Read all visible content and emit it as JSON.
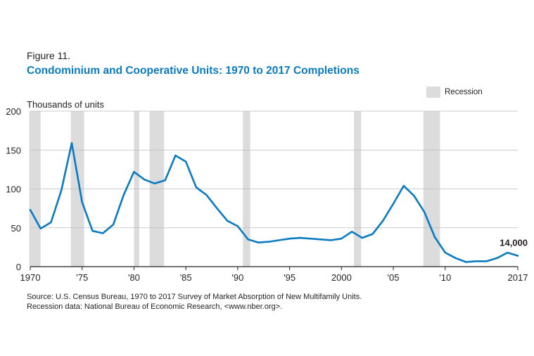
{
  "figure_label": "Figure 11.",
  "chart_data": {
    "type": "line",
    "title": "Condominium and Cooperative Units: 1970 to 2017 Completions",
    "ylabel": "Thousands of units",
    "xlabel": "",
    "ylim": [
      0,
      200
    ],
    "xlim": [
      1970,
      2017
    ],
    "yticks": [
      0,
      50,
      100,
      150,
      200
    ],
    "xticks": [
      {
        "value": 1970,
        "label": "1970"
      },
      {
        "value": 1975,
        "label": "'75"
      },
      {
        "value": 1980,
        "label": "'80"
      },
      {
        "value": 1985,
        "label": "'85"
      },
      {
        "value": 1990,
        "label": "'90"
      },
      {
        "value": 1995,
        "label": "'95"
      },
      {
        "value": 2000,
        "label": "2000"
      },
      {
        "value": 2005,
        "label": "'05"
      },
      {
        "value": 2010,
        "label": "'10"
      },
      {
        "value": 2017,
        "label": "2017"
      }
    ],
    "grid": true,
    "legend": {
      "label": "Recession",
      "position": "top-right"
    },
    "recessions": [
      [
        1969.9,
        1971.0
      ],
      [
        1973.9,
        1975.2
      ],
      [
        1980.0,
        1980.5
      ],
      [
        1981.5,
        1982.9
      ],
      [
        1990.5,
        1991.2
      ],
      [
        2001.2,
        2001.9
      ],
      [
        2007.9,
        2009.5
      ]
    ],
    "series": [
      {
        "color": "#0a7bc1",
        "x": [
          1970,
          1971,
          1972,
          1973,
          1974,
          1975,
          1976,
          1977,
          1978,
          1979,
          1980,
          1981,
          1982,
          1983,
          1984,
          1985,
          1986,
          1987,
          1988,
          1989,
          1990,
          1991,
          1992,
          1993,
          1994,
          1995,
          1996,
          1997,
          1998,
          1999,
          2000,
          2001,
          2002,
          2003,
          2004,
          2005,
          2006,
          2007,
          2008,
          2009,
          2010,
          2011,
          2012,
          2013,
          2014,
          2015,
          2016,
          2017
        ],
        "values": [
          73,
          49,
          57,
          98,
          159,
          83,
          46,
          43,
          54,
          92,
          122,
          112,
          107,
          111,
          143,
          135,
          102,
          92,
          75,
          59,
          52,
          35,
          31,
          32,
          34,
          36,
          37,
          36,
          35,
          34,
          36,
          45,
          37,
          42,
          59,
          81,
          104,
          91,
          70,
          38,
          18,
          11,
          6,
          7,
          7,
          11,
          18,
          14
        ]
      }
    ],
    "annotation": {
      "label": "14,000",
      "x": 2017,
      "y": 14
    }
  },
  "source_lines": [
    "Source: U.S. Census Bureau, 1970 to 2017 Survey of Market Absorption of New Multifamily Units.",
    "Recession data: National Bureau of Economic Research, <www.nber.org>."
  ]
}
